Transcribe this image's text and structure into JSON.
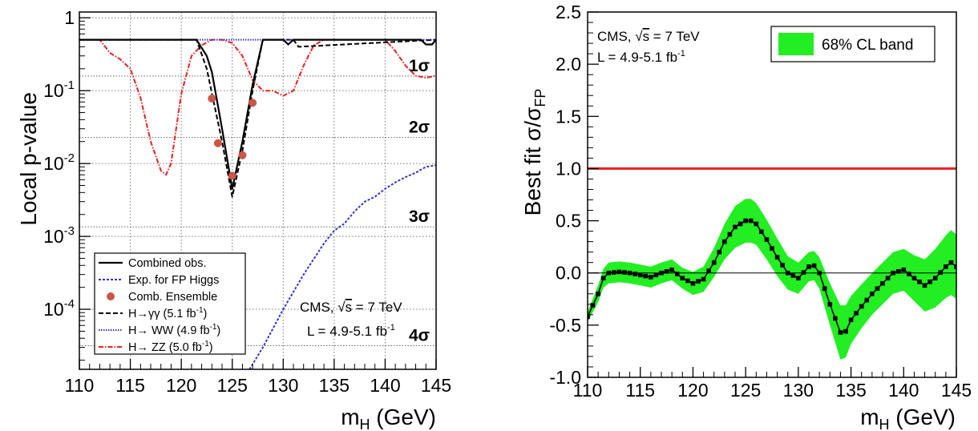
{
  "chart_data": [
    {
      "type": "line",
      "scale_y": "log",
      "xlim": [
        110,
        145
      ],
      "ylim": [
        1.5e-05,
        1.2
      ],
      "ylabel": "Local p-value",
      "xlabel": "m_H (GeV)",
      "xticks": [
        "110",
        "115",
        "120",
        "125",
        "130",
        "135",
        "140",
        "145"
      ],
      "yticks": [
        "1",
        "10^-1",
        "10^-2",
        "10^-3",
        "10^-4"
      ],
      "sigma_lines": [
        {
          "label": "1σ",
          "p": 0.1587
        },
        {
          "label": "2σ",
          "p": 0.02275
        },
        {
          "label": "3σ",
          "p": 0.00135
        },
        {
          "label": "4σ",
          "p": 3.17e-05
        }
      ],
      "legend": {
        "position": "bottom-left",
        "entries": [
          "Combined obs.",
          "Exp. for FP Higgs",
          "Comb. Ensemble",
          "H→γγ (5.1 fb",
          "H→ WW (4.9 fb",
          "H→ ZZ (5.0 fb"
        ]
      },
      "annotations": {
        "cms_text": "CMS, ",
        "sqrt_s": "s",
        "energy": " = 7 TeV",
        "lumi": "L = 4.9-5.1 fb",
        "lumi_exp": "-1"
      },
      "series": [
        {
          "name": "Combined obs.",
          "color": "#000000",
          "x": [
            110,
            121.5,
            122.5,
            123,
            124,
            125,
            126,
            127,
            128,
            130,
            130.5,
            131,
            143.5,
            144,
            144.6,
            145
          ],
          "y": [
            0.5,
            0.5,
            0.3,
            0.18,
            0.03,
            0.0045,
            0.02,
            0.12,
            0.5,
            0.5,
            0.43,
            0.5,
            0.5,
            0.43,
            0.43,
            0.5
          ]
        },
        {
          "name": "Exp. for FP Higgs",
          "color": "#3333cc",
          "x": [
            126.7,
            128,
            130,
            132,
            134,
            135,
            136,
            137,
            138,
            139,
            140,
            141,
            142,
            143,
            144,
            145
          ],
          "y": [
            1.5e-05,
            3e-05,
            0.0001,
            0.0003,
            0.0008,
            0.0012,
            0.0015,
            0.0022,
            0.003,
            0.0035,
            0.0045,
            0.0055,
            0.0065,
            0.0075,
            0.009,
            0.0095
          ]
        },
        {
          "name": "Comb. Ensemble",
          "color": "#cc5544",
          "x": [
            123,
            123.6,
            125,
            126,
            127
          ],
          "y": [
            0.078,
            0.019,
            0.0068,
            0.013,
            0.068
          ]
        },
        {
          "name": "H→γγ (5.1 fb-1)",
          "color": "#000000",
          "x": [
            110,
            121.5,
            122.5,
            124,
            125,
            126,
            127,
            128,
            131,
            131.5,
            145
          ],
          "y": [
            0.5,
            0.5,
            0.2,
            0.02,
            0.0035,
            0.015,
            0.1,
            0.5,
            0.5,
            0.4,
            0.5
          ]
        },
        {
          "name": "H→ WW (4.9 fb-1)",
          "color": "#3333cc",
          "x": [
            110,
            145
          ],
          "y": [
            0.5,
            0.5
          ]
        },
        {
          "name": "H→ ZZ (5.0 fb-1)",
          "color": "#e8201e",
          "x": [
            110,
            112,
            113,
            114,
            115,
            116,
            117,
            118,
            118.5,
            119,
            120,
            121,
            122,
            123,
            124,
            125,
            126,
            127,
            128,
            129,
            130,
            131,
            132,
            133,
            134,
            135,
            136,
            137,
            138,
            139,
            140,
            141,
            142,
            143,
            144,
            145
          ],
          "y": [
            0.5,
            0.5,
            0.33,
            0.27,
            0.2,
            0.08,
            0.02,
            0.008,
            0.007,
            0.01,
            0.09,
            0.3,
            0.42,
            0.5,
            0.5,
            0.45,
            0.3,
            0.14,
            0.1,
            0.1,
            0.085,
            0.1,
            0.22,
            0.42,
            0.5,
            0.5,
            0.5,
            0.5,
            0.5,
            0.5,
            0.5,
            0.35,
            0.22,
            0.16,
            0.15,
            0.16
          ]
        }
      ]
    },
    {
      "type": "line",
      "xlim": [
        110,
        145
      ],
      "ylim": [
        -1.0,
        2.5
      ],
      "ylabel_main": "Best fit ",
      "ylabel_sigma": "σ/σ",
      "ylabel_sub": "FP",
      "xlabel": "m_H (GeV)",
      "xticks": [
        "110",
        "115",
        "120",
        "125",
        "130",
        "135",
        "140",
        "145"
      ],
      "yticks": [
        "-1.0",
        "-0.5",
        "0.0",
        "0.5",
        "1.0",
        "1.5",
        "2.0",
        "2.5"
      ],
      "legend": {
        "position": "top-right",
        "entries": [
          "68% CL band"
        ]
      },
      "annotations": {
        "cms_text": "CMS, ",
        "sqrt_s": "s",
        "energy": " = 7 TeV",
        "lumi": "L = 4.9-5.1 fb",
        "lumi_exp": "-1"
      },
      "reference_line": {
        "y": 1.0,
        "color": "#e8201e"
      },
      "band_color": "#22ee22",
      "series": [
        {
          "name": "Best fit",
          "x": [
            110,
            111,
            111.5,
            112,
            113,
            114,
            115,
            116,
            117,
            118,
            119,
            120,
            121,
            122,
            123,
            124,
            125,
            125.5,
            126,
            127,
            128,
            129,
            130,
            131,
            131.5,
            132,
            133,
            134,
            134.5,
            135,
            136,
            137,
            138,
            139,
            140,
            141,
            142,
            143,
            144,
            144.5,
            145
          ],
          "y": [
            -0.42,
            -0.2,
            -0.05,
            0.0,
            0.01,
            0.0,
            -0.02,
            -0.04,
            0.0,
            0.03,
            -0.05,
            -0.1,
            -0.06,
            0.1,
            0.3,
            0.44,
            0.5,
            0.5,
            0.47,
            0.32,
            0.15,
            0.0,
            -0.05,
            0.06,
            0.07,
            0.0,
            -0.3,
            -0.57,
            -0.56,
            -0.45,
            -0.32,
            -0.2,
            -0.1,
            0.0,
            0.03,
            -0.05,
            -0.12,
            -0.05,
            0.06,
            0.1,
            0.06
          ],
          "band_halfwidth": [
            0.05,
            0.08,
            0.09,
            0.1,
            0.1,
            0.1,
            0.1,
            0.1,
            0.1,
            0.1,
            0.1,
            0.11,
            0.12,
            0.14,
            0.17,
            0.2,
            0.21,
            0.21,
            0.2,
            0.19,
            0.18,
            0.16,
            0.15,
            0.14,
            0.14,
            0.15,
            0.2,
            0.26,
            0.25,
            0.23,
            0.21,
            0.2,
            0.2,
            0.2,
            0.2,
            0.22,
            0.25,
            0.28,
            0.3,
            0.31,
            0.31
          ]
        }
      ]
    }
  ]
}
